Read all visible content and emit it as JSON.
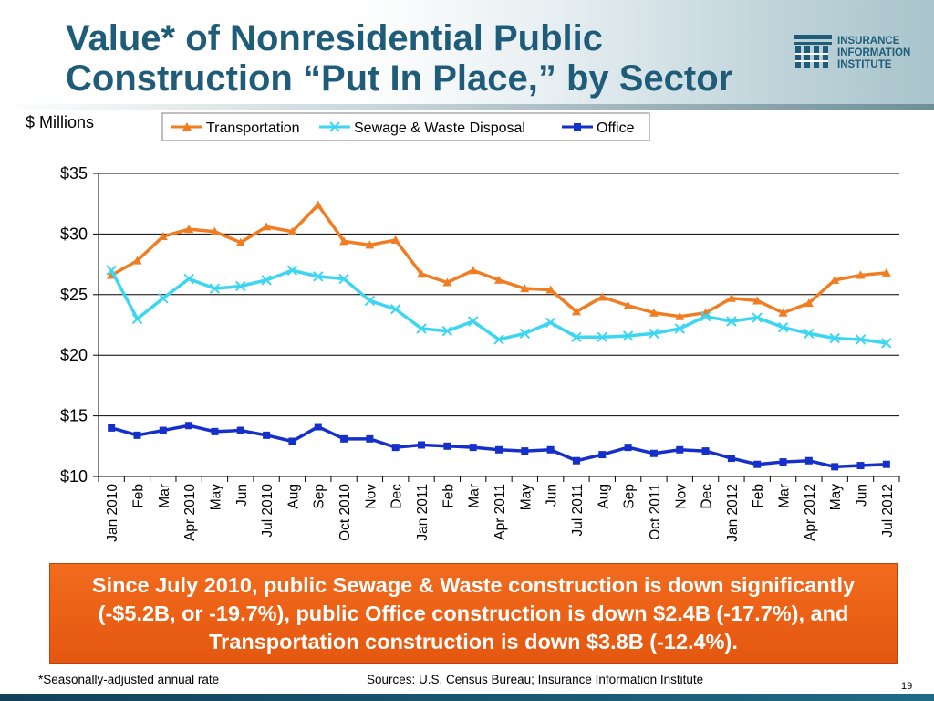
{
  "slide": {
    "title_line1": "Value* of Nonresidential Public",
    "title_line2": "Construction “Put In Place,” by Sector",
    "logo_text": "INSURANCE\nINFORMATION\nINSTITUTE",
    "callout": "Since July 2010, public Sewage & Waste construction is down significantly (-$5.2B, or -19.7%), public Office construction is down $2.4B (-17.7%), and Transportation construction is down $3.8B (-12.4%).",
    "footnote": "*Seasonally-adjusted annual rate",
    "sources": "Sources: U.S. Census Bureau; Insurance Information Institute",
    "page_number": "19",
    "colors": {
      "title": "#1f5c79",
      "callout_bg": "#e8601a",
      "bottom_band": "#174f6a"
    }
  },
  "chart_data": {
    "type": "line",
    "ylabel": "$ Millions",
    "ylim": [
      10,
      35
    ],
    "yticks": [
      "$10",
      "$15",
      "$20",
      "$25",
      "$30",
      "$35"
    ],
    "ytick_values": [
      10,
      15,
      20,
      25,
      30,
      35
    ],
    "grid": true,
    "legend_position": "top",
    "categories": [
      "Jan 2010",
      "Feb",
      "Mar",
      "Apr 2010",
      "May",
      "Jun",
      "Jul 2010",
      "Aug",
      "Sep",
      "Oct 2010",
      "Nov",
      "Dec",
      "Jan 2011",
      "Feb",
      "Mar",
      "Apr 2011",
      "May",
      "Jun",
      "Jul 2011",
      "Aug",
      "Sep",
      "Oct 2011",
      "Nov",
      "Dec",
      "Jan 2012",
      "Feb",
      "Mar",
      "Apr 2012",
      "May",
      "Jun",
      "Jul 2012"
    ],
    "series": [
      {
        "name": "Transportation",
        "color": "#f07d22",
        "marker": "triangle",
        "values": [
          26.6,
          27.8,
          29.8,
          30.4,
          30.2,
          29.3,
          30.6,
          30.2,
          32.4,
          29.4,
          29.1,
          29.5,
          26.7,
          26.0,
          27.0,
          26.2,
          25.5,
          25.4,
          23.6,
          24.8,
          24.1,
          23.5,
          23.2,
          23.5,
          24.7,
          24.5,
          23.5,
          24.3,
          26.2,
          26.6,
          26.8
        ]
      },
      {
        "name": "Sewage & Waste Disposal",
        "color": "#3cd6f2",
        "marker": "x",
        "values": [
          27.0,
          23.0,
          24.7,
          26.3,
          25.5,
          25.7,
          26.2,
          27.0,
          26.5,
          26.3,
          24.5,
          23.8,
          22.2,
          22.0,
          22.8,
          21.3,
          21.8,
          22.7,
          21.5,
          21.5,
          21.6,
          21.8,
          22.2,
          23.2,
          22.8,
          23.1,
          22.3,
          21.8,
          21.4,
          21.3,
          21.0
        ]
      },
      {
        "name": "Office",
        "color": "#1530c8",
        "marker": "square",
        "values": [
          14.0,
          13.4,
          13.8,
          14.2,
          13.7,
          13.8,
          13.4,
          12.9,
          14.1,
          13.1,
          13.1,
          12.4,
          12.6,
          12.5,
          12.4,
          12.2,
          12.1,
          12.2,
          11.3,
          11.8,
          12.4,
          11.9,
          12.2,
          12.1,
          11.5,
          11.0,
          11.2,
          11.3,
          10.8,
          10.9,
          11.0
        ]
      }
    ]
  }
}
